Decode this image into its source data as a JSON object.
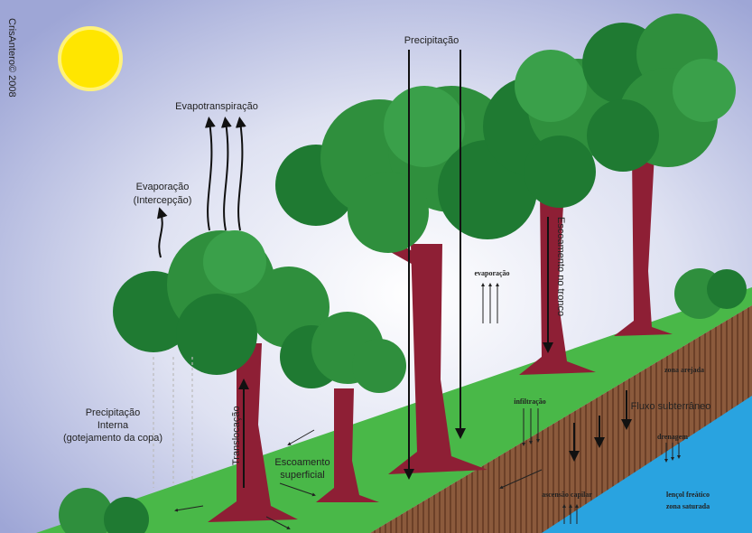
{
  "labels": {
    "copyright": "CrisAntero© 2008",
    "precipitation": "Precipitação",
    "evapotranspiration": "Evapotranspiração",
    "evaporation_interception": [
      "Evaporação",
      "(Intercepção)"
    ],
    "evaporation": "evaporação",
    "stemflow": "Escoamento no tronco",
    "aerated_zone": "zona arejada",
    "groundwater_flow": "Fluxo subterrâneo",
    "infiltration": "infiltração",
    "drainage": "drenagem",
    "internal_precipitation": [
      "Precipitação",
      "Interna",
      "(gotejamento da copa)"
    ],
    "translocation": "Translocação",
    "surface_runoff": [
      "Escoamento",
      "superficial"
    ],
    "capillary_rise": "ascensão capilar",
    "water_table": [
      "lençol freático",
      "zona saturada"
    ]
  }
}
